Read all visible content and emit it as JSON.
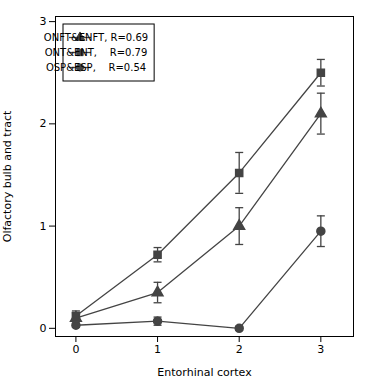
{
  "chart_data": {
    "type": "line",
    "xlabel": "Entorhinal cortex",
    "ylabel": "Olfactory bulb and tract",
    "x": [
      0,
      1,
      2,
      3
    ],
    "series": [
      {
        "name": "ONFT&ENFT, R=0.69",
        "values": [
          0.1,
          0.35,
          1.0,
          2.1
        ],
        "yerr": [
          0.05,
          0.1,
          0.18,
          0.2
        ],
        "marker": "triangle",
        "color": "#444444",
        "line_style": "solid"
      },
      {
        "name": "ONT&ENT,    R=0.79",
        "values": [
          0.12,
          0.72,
          1.52,
          2.5
        ],
        "yerr": [
          0.05,
          0.07,
          0.2,
          0.13
        ],
        "marker": "square",
        "color": "#444444",
        "line_style": "solid"
      },
      {
        "name": "OSP&ESP,    R=0.54",
        "values": [
          0.03,
          0.07,
          0.0,
          0.95
        ],
        "yerr": [
          0.02,
          0.04,
          0.02,
          0.15
        ],
        "marker": "circle",
        "color": "#444444",
        "line_style": "solid"
      }
    ],
    "xlim": [
      -0.25,
      3.4
    ],
    "ylim": [
      -0.08,
      3.05
    ],
    "xticks": [
      0,
      1,
      2,
      3
    ],
    "yticks": [
      0,
      1,
      2,
      3
    ],
    "grid": false,
    "legend": "upper left"
  }
}
